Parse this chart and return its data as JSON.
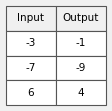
{
  "headers": [
    "Input",
    "Output"
  ],
  "rows": [
    [
      "-3",
      "-1"
    ],
    [
      "-7",
      "-9"
    ],
    [
      "6",
      "4"
    ]
  ],
  "bg_color": "#f0f0f0",
  "border_color": "#555555",
  "header_bg": "#f0f0f0",
  "row_bg": "#ffffff",
  "font_size": 7.5,
  "header_font_size": 7.5,
  "lw": 0.8
}
